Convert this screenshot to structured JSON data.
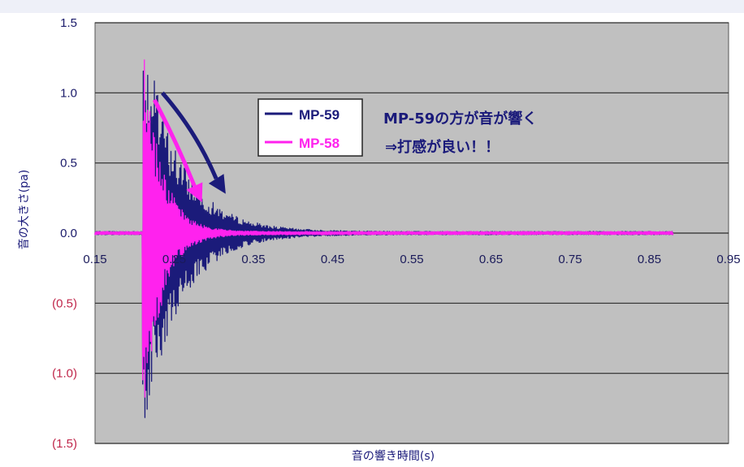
{
  "chart_data": {
    "type": "line",
    "xlabel": "音の響き時間(s)",
    "ylabel": "音の大きさ(pa)",
    "xlim": [
      0.15,
      0.95
    ],
    "ylim": [
      -1.5,
      1.5
    ],
    "x_ticks": [
      "0.15",
      "0.25",
      "0.35",
      "0.45",
      "0.55",
      "0.65",
      "0.75",
      "0.85",
      "0.95"
    ],
    "y_ticks": [
      {
        "value": 1.5,
        "label": "1.5",
        "color": "#1a1a6a"
      },
      {
        "value": 1.0,
        "label": "1.0",
        "color": "#1a1a6a"
      },
      {
        "value": 0.5,
        "label": "0.5",
        "color": "#1a1a6a"
      },
      {
        "value": 0.0,
        "label": "0.0",
        "color": "#1a1a6a"
      },
      {
        "value": -0.5,
        "label": "(0.5)",
        "color": "#c0264a"
      },
      {
        "value": -1.0,
        "label": "(1.0)",
        "color": "#c0264a"
      },
      {
        "value": -1.5,
        "label": "(1.5)",
        "color": "#c0264a"
      }
    ],
    "grid": "horizontal",
    "plot_background": "#c0c0c0",
    "legend_position": "top-center",
    "series": [
      {
        "name": "MP-59",
        "color": "#1b1b7a",
        "onset": 0.21,
        "peak_amplitude": 1.5,
        "decay_time_constant": 0.045,
        "end": 0.88,
        "noise_floor": 0.012
      },
      {
        "name": "MP-58",
        "color": "#ff22ee",
        "onset": 0.21,
        "peak_amplitude": 1.5,
        "decay_time_constant": 0.022,
        "end": 0.88,
        "noise_floor": 0.012
      }
    ],
    "annotations": [
      {
        "text": "MP-59の方が音が響く",
        "color": "#1a1a7a"
      },
      {
        "text": "⇒打感が良い！！",
        "color": "#1a1a7a"
      }
    ],
    "arrows": [
      {
        "color": "#1b1b7a",
        "from": [
          0.235,
          1.0
        ],
        "to": [
          0.315,
          0.28
        ]
      },
      {
        "color": "#ff22ee",
        "from": [
          0.225,
          0.95
        ],
        "to": [
          0.285,
          0.22
        ]
      }
    ]
  }
}
